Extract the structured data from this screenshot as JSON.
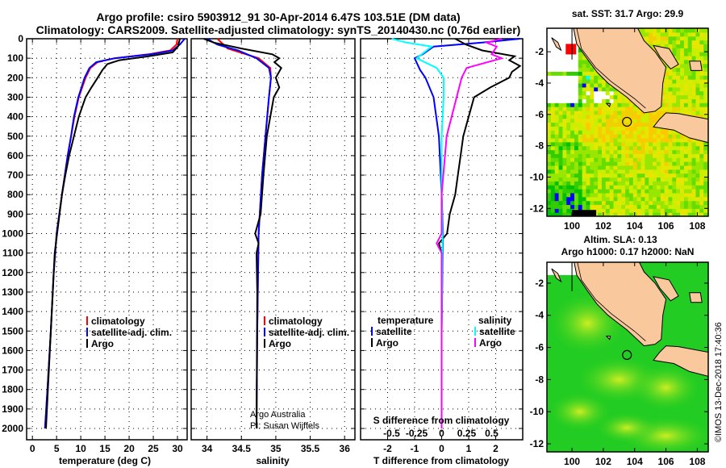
{
  "title_line1": "Argo profile: csiro 5903912_91 30-Apr-2014 6.47S 103.51E (DM data)",
  "title_line2": "Climatology: CARS2009. Satellite-adjusted climatology: synTS_20140430.nc (0.76d earlier)",
  "colors": {
    "argo": "#000000",
    "climatology": "#ff0000",
    "satellite": "#0000ff",
    "sal_satellite": "#00ffff",
    "sal_argo": "#ff00ff",
    "land": "#f9c89c"
  },
  "credits": {
    "line1": "Argo Australia",
    "line2": "PI: Susan Wijffels"
  },
  "copyright": "©IMOS 13-Dec-2018 17:40:36",
  "chart_data": [
    {
      "type": "line",
      "name": "temperature-profile",
      "xlabel": "temperature (deg C)",
      "xlim": [
        -1.2,
        32
      ],
      "ylim": [
        2100,
        0
      ],
      "xticks": [
        0,
        5,
        10,
        15,
        20,
        25,
        30
      ],
      "yticks": [
        0,
        100,
        200,
        300,
        400,
        500,
        600,
        700,
        800,
        900,
        1000,
        1100,
        1200,
        1300,
        1400,
        1500,
        1600,
        1700,
        1800,
        1900,
        2000
      ],
      "legend": [
        "climatology",
        "satellite-adj. clim.",
        "Argo"
      ],
      "series": [
        {
          "name": "climatology",
          "color": "#ff0000",
          "depth": [
            0,
            30,
            60,
            80,
            100,
            120,
            150,
            200,
            300,
            400,
            500,
            600,
            800,
            1000,
            1200,
            1500,
            1800,
            2000
          ],
          "values": [
            30,
            29.8,
            28.5,
            24,
            17,
            13.5,
            12,
            11,
            9.6,
            8.7,
            8,
            7.3,
            6.1,
            5,
            4.4,
            3.8,
            3.1,
            2.6
          ]
        },
        {
          "name": "satellite-adj. clim.",
          "color": "#0000ff",
          "depth": [
            0,
            30,
            60,
            80,
            100,
            120,
            150,
            200,
            300,
            400,
            500,
            600,
            800,
            1000,
            1200,
            1500,
            1800,
            2000
          ],
          "values": [
            31.5,
            30.5,
            29,
            24.5,
            17,
            13.2,
            11.8,
            10.8,
            9.5,
            8.6,
            8,
            7.3,
            6.1,
            5,
            4.4,
            3.8,
            3.1,
            2.6
          ]
        },
        {
          "name": "Argo",
          "color": "#000000",
          "depth": [
            0,
            40,
            70,
            90,
            110,
            130,
            160,
            200,
            250,
            300,
            400,
            500,
            600,
            700,
            800,
            900,
            1000,
            1100,
            1200,
            1400,
            1600,
            1800,
            2000
          ],
          "values": [
            30.5,
            30.1,
            29,
            24,
            18,
            15.5,
            14.5,
            13.5,
            12.2,
            11,
            9.6,
            8.6,
            7.6,
            6.8,
            6.1,
            5.6,
            5.1,
            4.6,
            4.4,
            4,
            3.6,
            3.2,
            2.8
          ]
        }
      ]
    },
    {
      "type": "line",
      "name": "salinity-profile",
      "xlabel": "salinity",
      "xlim": [
        33.77,
        36.15
      ],
      "ylim": [
        2100,
        0
      ],
      "xticks": [
        34,
        34.5,
        35,
        35.5,
        36
      ],
      "legend": [
        "climatology",
        "satellite-adj. clim.",
        "Argo"
      ],
      "series": [
        {
          "name": "climatology",
          "color": "#ff0000",
          "depth": [
            0,
            50,
            100,
            150,
            200,
            300,
            500,
            700,
            1000,
            1500,
            2000
          ],
          "values": [
            34.15,
            34.3,
            34.75,
            34.92,
            34.93,
            34.9,
            34.85,
            34.8,
            34.75,
            34.73,
            34.72
          ]
        },
        {
          "name": "satellite-adj. clim.",
          "color": "#0000ff",
          "depth": [
            0,
            30,
            60,
            100,
            150,
            200,
            300,
            500,
            700,
            1000,
            1500,
            2000
          ],
          "values": [
            34.0,
            34.15,
            34.45,
            34.72,
            34.9,
            34.93,
            34.9,
            34.85,
            34.8,
            34.75,
            34.73,
            34.72
          ]
        },
        {
          "name": "Argo",
          "color": "#000000",
          "depth": [
            0,
            20,
            50,
            80,
            100,
            120,
            150,
            200,
            250,
            300,
            400,
            500,
            700,
            900,
            1000,
            1050,
            1100,
            1300,
            2000
          ],
          "values": [
            33.95,
            34.1,
            34.5,
            34.95,
            35.05,
            34.98,
            35.08,
            35.0,
            35.05,
            34.97,
            34.92,
            34.87,
            34.82,
            34.78,
            34.7,
            34.75,
            34.72,
            34.73,
            34.72
          ]
        }
      ]
    },
    {
      "type": "line",
      "name": "difference-profile",
      "xlabel": "T difference from climatology",
      "xlabel2": "S difference from climatology",
      "xlim": [
        -3,
        3
      ],
      "ylim": [
        2100,
        0
      ],
      "xticks": [
        -2,
        -1,
        0,
        1,
        2
      ],
      "xticks_s": [
        -0.5,
        -0.25,
        0,
        0.25,
        0.5
      ],
      "xticks_s_labels": [
        "-0.5",
        "-0.25",
        "0",
        "0.25",
        "0.5"
      ],
      "s_scale": 3.7,
      "legend_temperature_title": "temperature",
      "legend_salinity_title": "salinity",
      "legend": [
        "satellite",
        "Argo"
      ],
      "series": [
        {
          "name": "T satellite",
          "color": "#0000ff",
          "quantity": "T",
          "depth": [
            0,
            20,
            40,
            80,
            100,
            130,
            160,
            200,
            300,
            500,
            800,
            1000,
            1500,
            2000
          ],
          "values": [
            2.9,
            1.5,
            -0.3,
            -0.7,
            -1.0,
            -0.9,
            -0.8,
            -0.6,
            -0.3,
            -0.1,
            0,
            0.05,
            0,
            0
          ]
        },
        {
          "name": "T Argo",
          "color": "#000000",
          "quantity": "T",
          "depth": [
            0,
            30,
            60,
            90,
            110,
            140,
            170,
            200,
            250,
            300,
            400,
            500,
            600,
            700,
            800,
            900,
            1000,
            1050,
            1100,
            1500,
            2000
          ],
          "values": [
            0.5,
            0.9,
            1.5,
            2.7,
            2.5,
            2.9,
            2.6,
            2.5,
            1.8,
            1.2,
            1.0,
            0.8,
            0.7,
            0.6,
            0.5,
            0.3,
            0.2,
            -0.1,
            0,
            0,
            0
          ]
        },
        {
          "name": "S satellite",
          "color": "#00ffff",
          "quantity": "S",
          "depth": [
            0,
            20,
            40,
            80,
            100,
            150,
            200,
            300,
            500,
            800,
            1000,
            1500,
            2000
          ],
          "values": [
            -0.5,
            -0.35,
            -0.1,
            -0.2,
            -0.25,
            -0.05,
            0.02,
            0.02,
            0,
            0,
            0.01,
            0,
            0
          ]
        },
        {
          "name": "S Argo",
          "color": "#ff00ff",
          "quantity": "S",
          "depth": [
            0,
            20,
            40,
            80,
            100,
            150,
            200,
            300,
            500,
            800,
            1000,
            1050,
            1100,
            1200,
            2000
          ],
          "values": [
            0.6,
            0.45,
            0.55,
            0.5,
            0.6,
            0.25,
            0.2,
            0.15,
            0.05,
            0,
            0,
            -0.05,
            0,
            0,
            0
          ]
        }
      ]
    },
    {
      "type": "heatmap",
      "name": "sst-map",
      "title": "sat. SST: 31.7 Argo: 29.9",
      "xlim": [
        98.4,
        108.7
      ],
      "ylim": [
        -12.5,
        -0.5
      ],
      "xticks": [
        100,
        102,
        104,
        106,
        108
      ],
      "yticks": [
        -2,
        -4,
        -6,
        -8,
        -10,
        -12
      ],
      "argo_position": {
        "lon": 103.51,
        "lat": -6.47
      }
    },
    {
      "type": "heatmap",
      "name": "sla-map",
      "title1": "Altim. SLA: 0.13",
      "title2": "Argo h1000: 0.17 h2000: NaN",
      "xlim": [
        98.4,
        108.7
      ],
      "ylim": [
        -12.5,
        -0.7
      ],
      "xticks": [
        100,
        102,
        104,
        106,
        108
      ],
      "yticks": [
        -2,
        -4,
        -6,
        -8,
        -10,
        -12
      ],
      "argo_position": {
        "lon": 103.51,
        "lat": -6.47
      }
    }
  ]
}
